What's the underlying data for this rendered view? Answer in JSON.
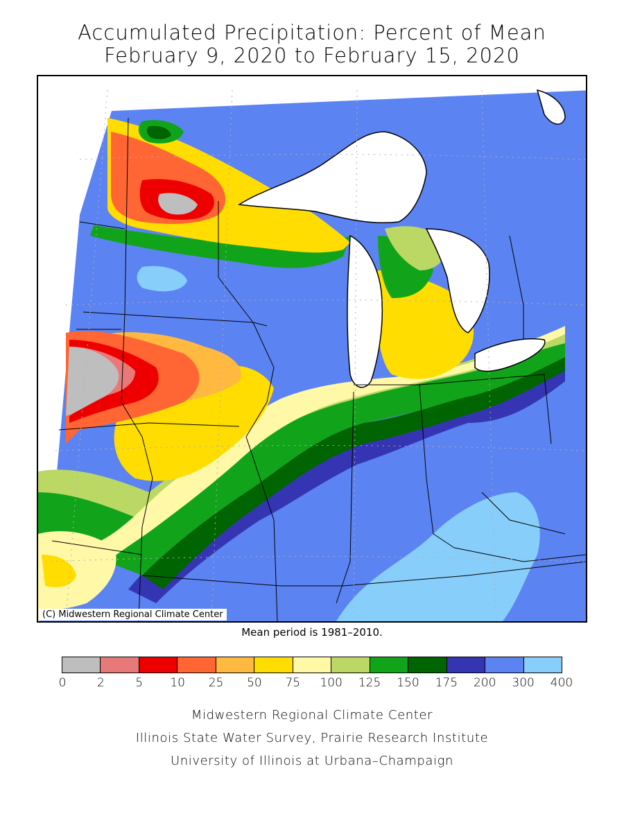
{
  "title_line1": "Accumulated Precipitation: Percent of Mean",
  "title_line2": "February 9, 2020 to February 15, 2020",
  "copyright": "(C) Midwestern Regional Climate Center",
  "mean_period": "Mean period is 1981–2010.",
  "legend": {
    "labels": [
      "0",
      "2",
      "5",
      "10",
      "25",
      "50",
      "75",
      "100",
      "125",
      "150",
      "175",
      "200",
      "300",
      "400"
    ],
    "colors": [
      "#bebebe",
      "#e77a79",
      "#ee0000",
      "#ff6633",
      "#ffb940",
      "#ffdd00",
      "#fff8a6",
      "#bbd865",
      "#11a41b",
      "#006400",
      "#3535b4",
      "#5c83f2",
      "#87cefa"
    ]
  },
  "credits": [
    "Midwestern Regional Climate Center",
    "Illinois State Water Survey, Prairie Research Institute",
    "University of Illinois at Urbana–Champaign"
  ]
}
